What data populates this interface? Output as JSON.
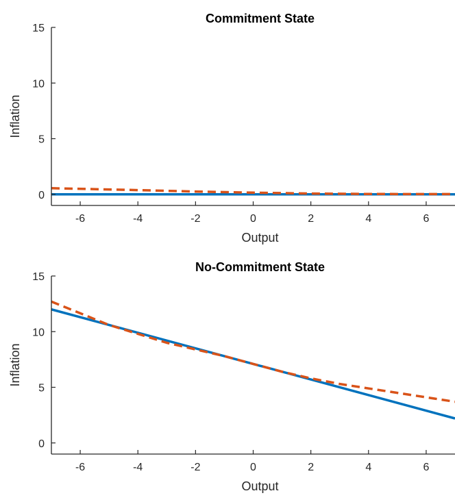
{
  "colors": {
    "series1": "#0072BD",
    "series2": "#D95319",
    "axis": "#262626",
    "background": "#ffffff"
  },
  "chart_data": [
    {
      "type": "line",
      "title": "Commitment State",
      "xlabel": "Output",
      "ylabel": "Inflation",
      "xlim": [
        -7,
        7
      ],
      "ylim": [
        -1,
        15
      ],
      "xticks": [
        -6,
        -4,
        -2,
        0,
        2,
        4,
        6
      ],
      "yticks": [
        0,
        5,
        10,
        15
      ],
      "xtick_labels": [
        "-6",
        "-4",
        "-2",
        "0",
        "2",
        "4",
        "6"
      ],
      "ytick_labels": [
        "0",
        "5",
        "10",
        "15"
      ],
      "grid": false,
      "series": [
        {
          "style": "solid",
          "color": "#0072BD",
          "x": [
            -7,
            7
          ],
          "y": [
            0,
            0
          ]
        },
        {
          "style": "dashed",
          "color": "#D95319",
          "x": [
            -7,
            -4,
            -2,
            0,
            2,
            4,
            7
          ],
          "y": [
            0.55,
            0.38,
            0.25,
            0.15,
            0.07,
            0.03,
            0.02
          ]
        }
      ]
    },
    {
      "type": "line",
      "title": "No-Commitment State",
      "xlabel": "Output",
      "ylabel": "Inflation",
      "xlim": [
        -7,
        7
      ],
      "ylim": [
        -1,
        15
      ],
      "xticks": [
        -6,
        -4,
        -2,
        0,
        2,
        4,
        6
      ],
      "yticks": [
        0,
        5,
        10,
        15
      ],
      "xtick_labels": [
        "-6",
        "-4",
        "-2",
        "0",
        "2",
        "4",
        "6"
      ],
      "ytick_labels": [
        "0",
        "5",
        "10",
        "15"
      ],
      "grid": false,
      "series": [
        {
          "style": "solid",
          "color": "#0072BD",
          "x": [
            -7,
            7
          ],
          "y": [
            12.0,
            2.2
          ]
        },
        {
          "style": "dashed",
          "color": "#D95319",
          "x": [
            -7,
            -5,
            -3,
            -1,
            0,
            1,
            2,
            3,
            5,
            7
          ],
          "y": [
            12.7,
            10.6,
            9.0,
            7.8,
            7.1,
            6.4,
            5.8,
            5.3,
            4.5,
            3.7
          ]
        }
      ]
    }
  ]
}
